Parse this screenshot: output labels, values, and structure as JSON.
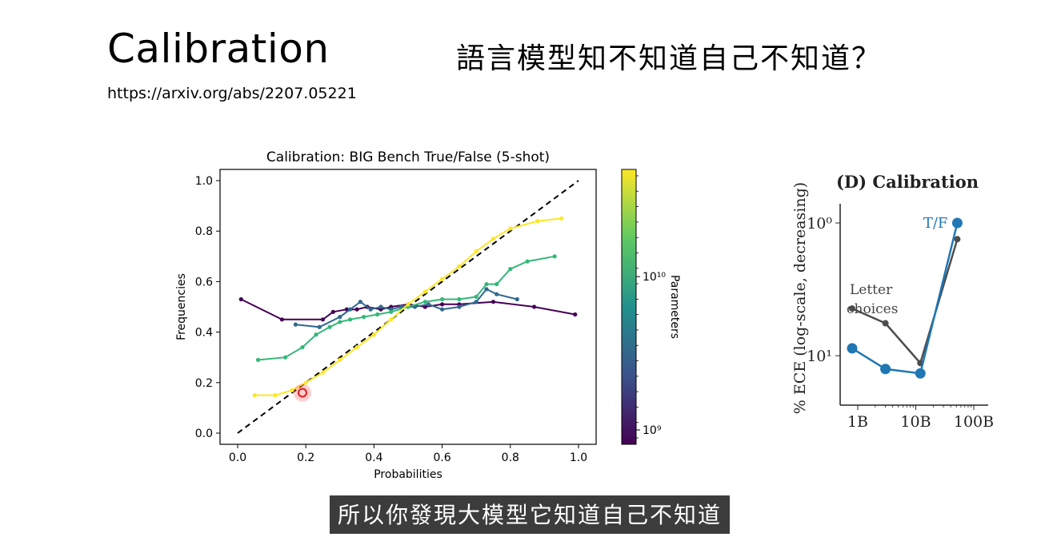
{
  "slide": {
    "title": "Calibration",
    "subtitle": "語言模型知不知道自己不知道？",
    "url": "https://arxiv.org/abs/2207.05221",
    "caption": "所以你發現大模型它知道自己不知道"
  },
  "chart_data": [
    {
      "type": "line",
      "title": "Calibration: BIG Bench True/False (5-shot)",
      "xlabel": "Probabilities",
      "ylabel": "Frequencies",
      "xlim": [
        0.0,
        1.0
      ],
      "ylim": [
        0.0,
        1.0
      ],
      "x_ticks": [
        "0.0",
        "0.2",
        "0.4",
        "0.6",
        "0.8",
        "1.0"
      ],
      "y_ticks": [
        "0.0",
        "0.2",
        "0.4",
        "0.6",
        "0.8",
        "1.0"
      ],
      "reference_line": "diagonal",
      "colorbar": {
        "label": "Parameters",
        "ticks": [
          "10⁹",
          "10¹⁰"
        ],
        "colormap": "viridis"
      },
      "series": [
        {
          "color": "#440154",
          "points": [
            [
              0.01,
              0.53
            ],
            [
              0.13,
              0.45
            ],
            [
              0.25,
              0.45
            ],
            [
              0.28,
              0.48
            ],
            [
              0.32,
              0.49
            ],
            [
              0.35,
              0.49
            ],
            [
              0.38,
              0.5
            ],
            [
              0.42,
              0.49
            ],
            [
              0.45,
              0.5
            ],
            [
              0.5,
              0.51
            ],
            [
              0.55,
              0.5
            ],
            [
              0.6,
              0.51
            ],
            [
              0.65,
              0.51
            ],
            [
              0.75,
              0.52
            ],
            [
              0.87,
              0.5
            ],
            [
              0.99,
              0.47
            ]
          ]
        },
        {
          "color": "#31688e",
          "points": [
            [
              0.17,
              0.43
            ],
            [
              0.24,
              0.42
            ],
            [
              0.3,
              0.46
            ],
            [
              0.33,
              0.49
            ],
            [
              0.36,
              0.52
            ],
            [
              0.39,
              0.49
            ],
            [
              0.42,
              0.5
            ],
            [
              0.45,
              0.49
            ],
            [
              0.48,
              0.5
            ],
            [
              0.52,
              0.5
            ],
            [
              0.56,
              0.51
            ],
            [
              0.6,
              0.49
            ],
            [
              0.65,
              0.5
            ],
            [
              0.7,
              0.52
            ],
            [
              0.73,
              0.57
            ],
            [
              0.76,
              0.55
            ],
            [
              0.82,
              0.53
            ]
          ]
        },
        {
          "color": "#35b779",
          "points": [
            [
              0.06,
              0.29
            ],
            [
              0.14,
              0.3
            ],
            [
              0.19,
              0.34
            ],
            [
              0.23,
              0.39
            ],
            [
              0.27,
              0.42
            ],
            [
              0.3,
              0.44
            ],
            [
              0.33,
              0.45
            ],
            [
              0.37,
              0.46
            ],
            [
              0.41,
              0.47
            ],
            [
              0.45,
              0.48
            ],
            [
              0.5,
              0.5
            ],
            [
              0.55,
              0.52
            ],
            [
              0.6,
              0.53
            ],
            [
              0.65,
              0.53
            ],
            [
              0.7,
              0.54
            ],
            [
              0.73,
              0.59
            ],
            [
              0.76,
              0.59
            ],
            [
              0.8,
              0.65
            ],
            [
              0.85,
              0.68
            ],
            [
              0.93,
              0.7
            ]
          ]
        },
        {
          "color": "#fde725",
          "points": [
            [
              0.05,
              0.15
            ],
            [
              0.11,
              0.15
            ],
            [
              0.16,
              0.17
            ],
            [
              0.2,
              0.2
            ],
            [
              0.25,
              0.24
            ],
            [
              0.3,
              0.29
            ],
            [
              0.35,
              0.34
            ],
            [
              0.4,
              0.39
            ],
            [
              0.45,
              0.45
            ],
            [
              0.5,
              0.51
            ],
            [
              0.55,
              0.56
            ],
            [
              0.6,
              0.61
            ],
            [
              0.65,
              0.66
            ],
            [
              0.7,
              0.72
            ],
            [
              0.75,
              0.77
            ],
            [
              0.8,
              0.81
            ],
            [
              0.88,
              0.84
            ],
            [
              0.95,
              0.85
            ]
          ]
        }
      ],
      "highlight_point": [
        0.19,
        0.16
      ]
    },
    {
      "type": "line",
      "title": "(D) Calibration",
      "ylabel": "% ECE (log-scale, decreasing)",
      "x_scale": "log",
      "x_ticks": [
        "1B",
        "10B",
        "100B"
      ],
      "y_ticks": [
        "10⁰",
        "10¹"
      ],
      "annotations": [
        "Letter choices"
      ],
      "series": [
        {
          "name": "T/F",
          "color": "#1f77b4",
          "points": [
            [
              0.8,
              9.5
            ],
            [
              3,
              10.9
            ],
            [
              12,
              11.2
            ],
            [
              52,
              1.0
            ]
          ]
        },
        {
          "color": "#4d4d4d",
          "points": [
            [
              0.8,
              6.8
            ],
            [
              3,
              7.8
            ],
            [
              12,
              10.5
            ],
            [
              52,
              2.1
            ]
          ]
        }
      ]
    }
  ]
}
